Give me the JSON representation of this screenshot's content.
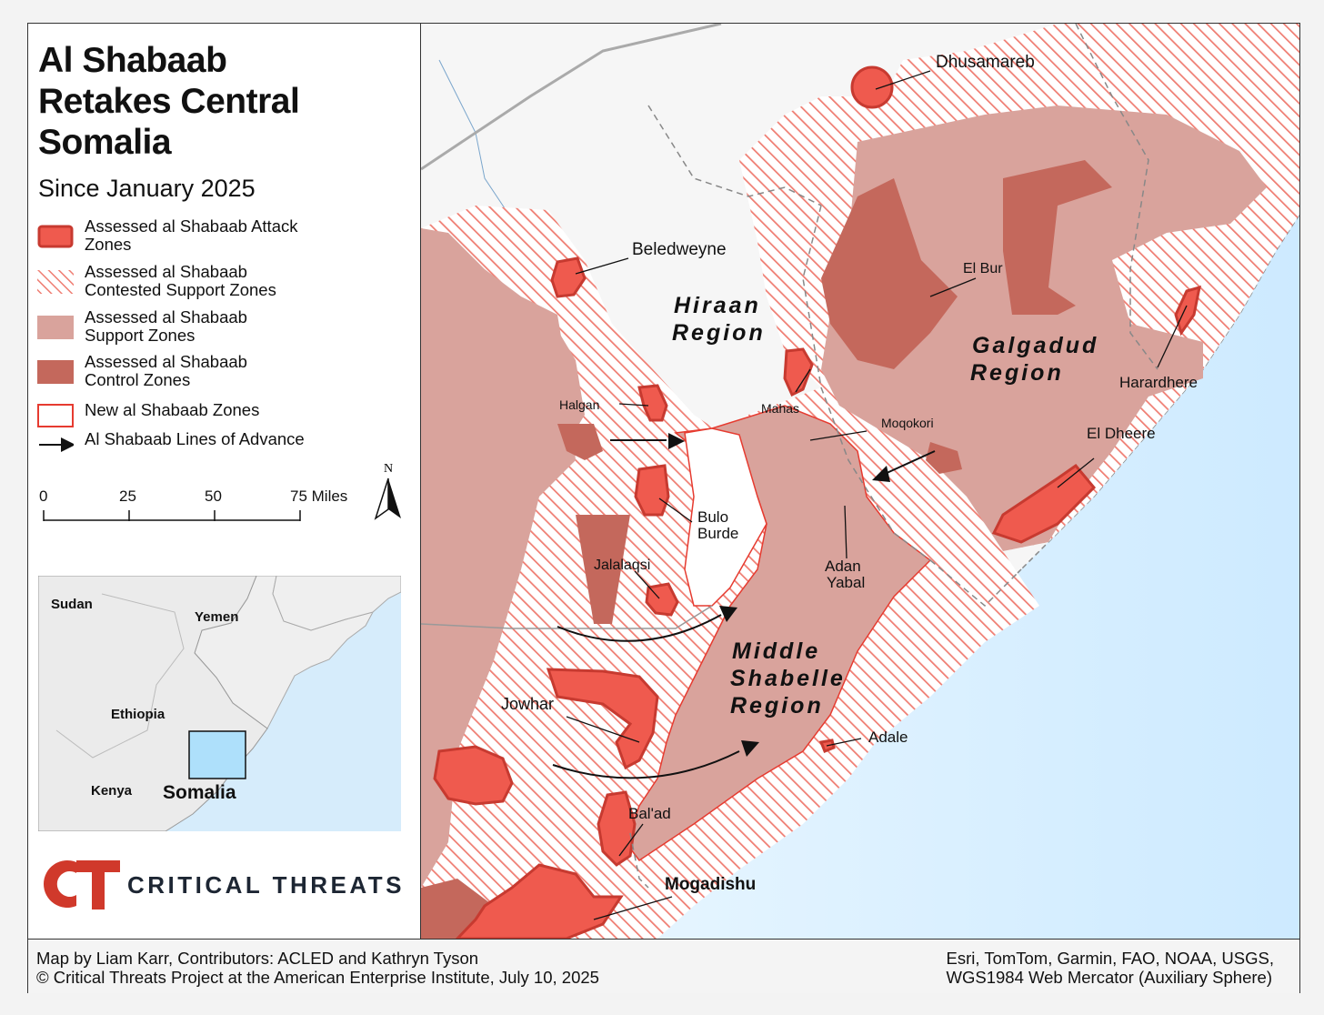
{
  "title_lines": [
    "Al Shabaab",
    "Retakes Central",
    "Somalia"
  ],
  "subtitle": "Since January 2025",
  "legend": [
    {
      "label_lines": [
        "Assessed al Shabaab Attack",
        "Zones"
      ],
      "swatch": "attack"
    },
    {
      "label_lines": [
        "Assessed al Shabaab",
        "Contested Support Zones"
      ],
      "swatch": "contested"
    },
    {
      "label_lines": [
        "Assessed al Shabaab",
        "Support Zones"
      ],
      "swatch": "support"
    },
    {
      "label_lines": [
        "Assessed al Shabaab",
        "Control Zones"
      ],
      "swatch": "control"
    },
    {
      "label_lines": [
        "New al Shabaab Zones"
      ],
      "swatch": "new"
    },
    {
      "label_lines": [
        "Al Shabaab Lines of Advance"
      ],
      "swatch": "arrow"
    }
  ],
  "scale_bar": {
    "ticks": [
      "0",
      "25",
      "50",
      "75 Miles"
    ]
  },
  "north_label": "N",
  "inset": {
    "labels": {
      "sudan": "Sudan",
      "yemen": "Yemen",
      "ethiopia": "Ethiopia",
      "kenya": "Kenya",
      "somalia": "Somalia"
    }
  },
  "logo": {
    "mark": "CT",
    "text": "CRITICAL THREATS"
  },
  "map": {
    "regions": {
      "hiraan": [
        "Hiraan",
        "Region"
      ],
      "galgadud": [
        "Galgadud",
        "Region"
      ],
      "middle_shabelle": [
        "Middle",
        "Shabelle",
        "Region"
      ]
    },
    "places": {
      "dhusamareb": "Dhusamareb",
      "beledweyne": "Beledweyne",
      "el_bur": "El Bur",
      "harardhere": "Harardhere",
      "halgan": "Halgan",
      "mahas": "Mahas",
      "moqokori": "Moqokori",
      "el_dheere": "El Dheere",
      "bulo_burde": [
        "Bulo",
        "Burde"
      ],
      "adan_yabal": [
        "Adan",
        "Yabal"
      ],
      "jalalaqsi": "Jalalaqsi",
      "jowhar": "Jowhar",
      "adale": "Adale",
      "balad": "Bal'ad",
      "mogadishu": "Mogadishu"
    }
  },
  "footer": {
    "left_lines": [
      "Map by Liam Karr, Contributors: ACLED and Kathryn Tyson",
      "© Critical Threats Project at the American Enterprise Institute, July 10, 2025"
    ],
    "right_lines": [
      "Esri, TomTom, Garmin, FAO, NOAA, USGS,",
      "WGS1984 Web Mercator (Auxiliary Sphere)"
    ]
  },
  "colors": {
    "attack_fill": "#ef5a4e",
    "attack_stroke": "#c73a30",
    "support": "#d9a39c",
    "control": "#c4685c",
    "hatch_line": "#ef7d72",
    "new_outline": "#e63b30",
    "ocean": "#d8efff",
    "logo_red": "#d0392b"
  }
}
